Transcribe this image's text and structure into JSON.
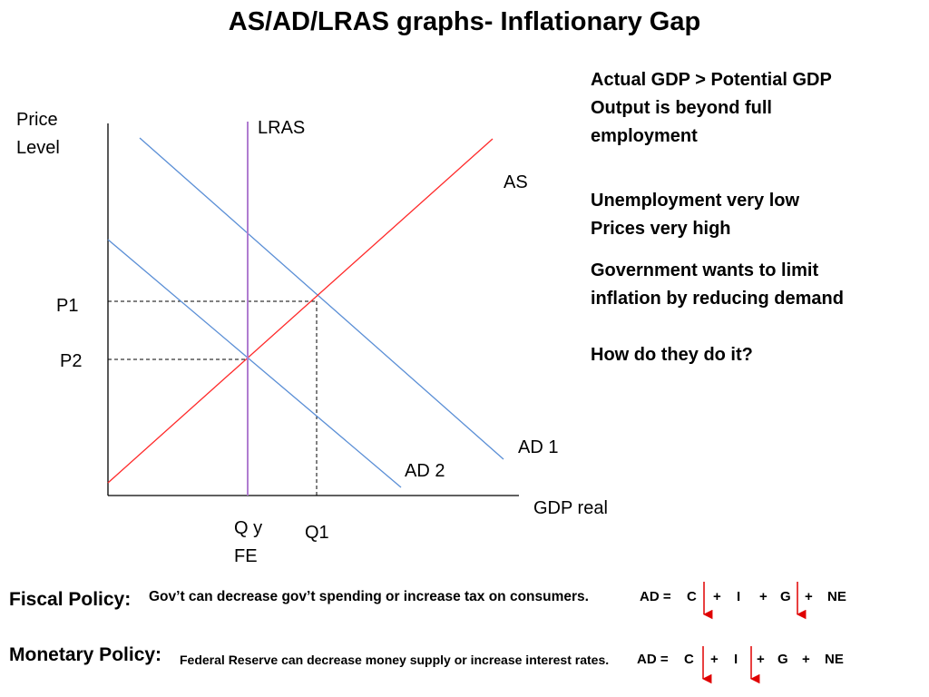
{
  "title": "AS/AD/LRAS graphs- Inflationary Gap",
  "notes": {
    "block1": [
      "Actual GDP > Potential GDP",
      "Output is beyond full",
      "employment"
    ],
    "block2": [
      "Unemployment very low",
      "Prices very high"
    ],
    "block3": [
      "Government wants to limit",
      "inflation by reducing demand"
    ],
    "block4": "How do they do it?"
  },
  "chart_data": {
    "type": "line",
    "ylabel_lines": [
      "Price",
      "Level"
    ],
    "xlabel": "GDP real",
    "grid": false,
    "series": [
      {
        "name": "LRAS",
        "color": "#b07cd0"
      },
      {
        "name": "AS",
        "color": "#ff2a2a"
      },
      {
        "name": "AD 1",
        "color": "#5b8fd6"
      },
      {
        "name": "AD 2",
        "color": "#5b8fd6"
      }
    ],
    "price_levels": [
      "P1",
      "P2"
    ],
    "quantities": [
      "Q y",
      "FE",
      "Q1"
    ]
  },
  "policies": {
    "fiscal": {
      "label": "Fiscal Policy:",
      "text": "Gov’t can decrease gov’t spending or increase tax on consumers.",
      "equation": [
        "AD =",
        "C",
        "+",
        "I",
        "+",
        "G",
        "+",
        "NE"
      ],
      "arrow_color": "#e00000"
    },
    "monetary": {
      "label": "Monetary Policy:",
      "text": "Federal Reserve can decrease money supply or increase interest rates.",
      "equation": [
        "AD =",
        "C",
        "+",
        "I",
        "+",
        "G",
        "+",
        "NE"
      ],
      "arrow_color": "#e00000"
    }
  }
}
